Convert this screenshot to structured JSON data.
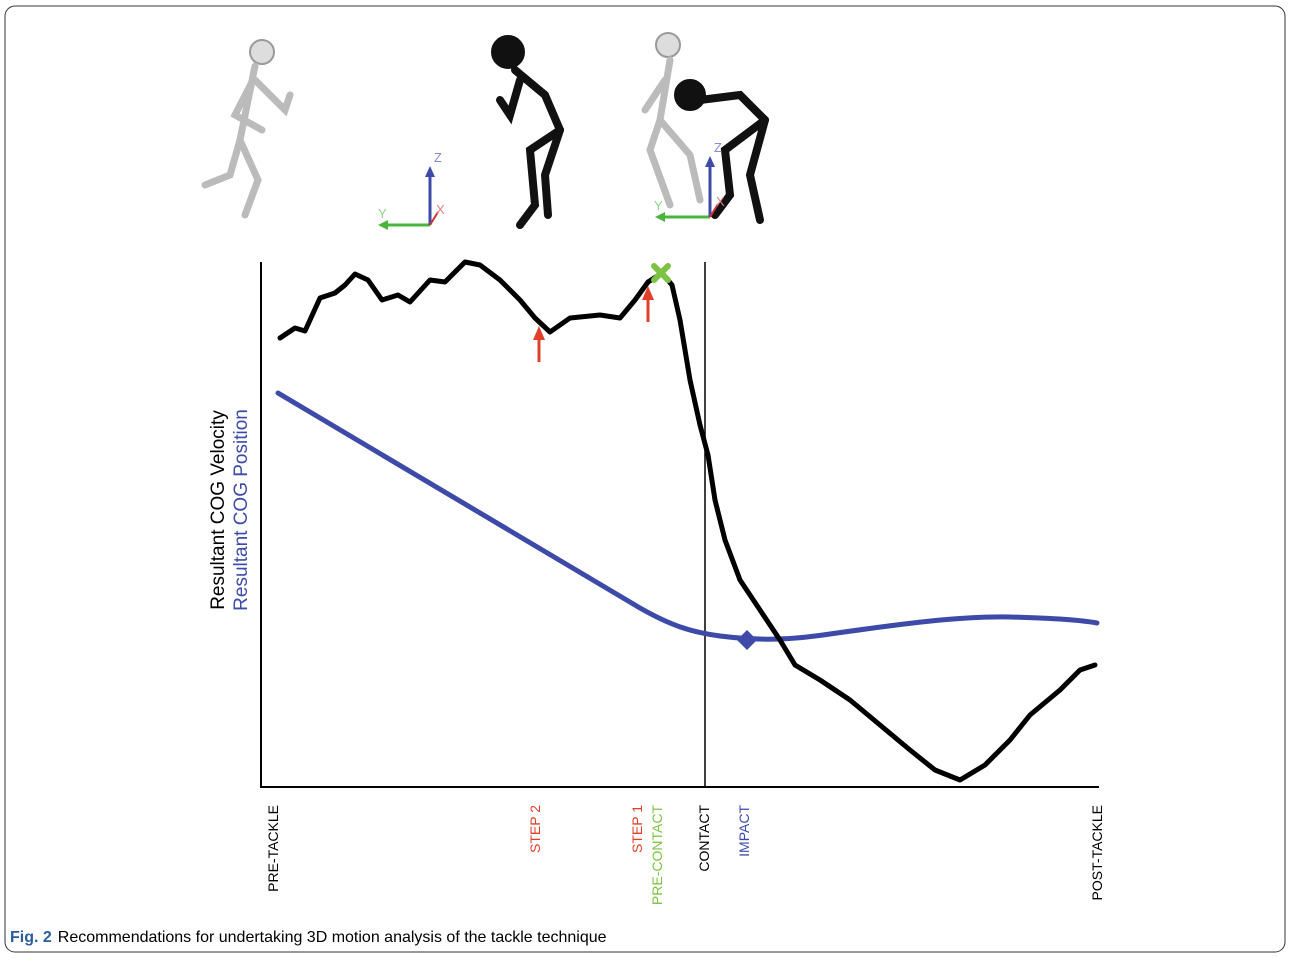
{
  "figure": {
    "y_labels": {
      "velocity": "Resultant COG Velocity",
      "position": "Resultant COG Position"
    },
    "x_labels": {
      "pre_tackle": "PRE-TACKLE",
      "step_2": "STEP 2",
      "step_1": "STEP 1",
      "pre_contact": "PRE-CONTACT",
      "contact": "CONTACT",
      "impact": "IMPACT",
      "post_tackle": "POST-TACKLE"
    },
    "axes_icons": [
      {
        "z": "Z",
        "y": "Y",
        "x": "X"
      },
      {
        "z": "Z",
        "y": "Y",
        "x": "X"
      }
    ]
  },
  "caption": {
    "label": "Fig. 2",
    "text": "Recommendations for undertaking 3D motion analysis of the tackle technique"
  }
}
